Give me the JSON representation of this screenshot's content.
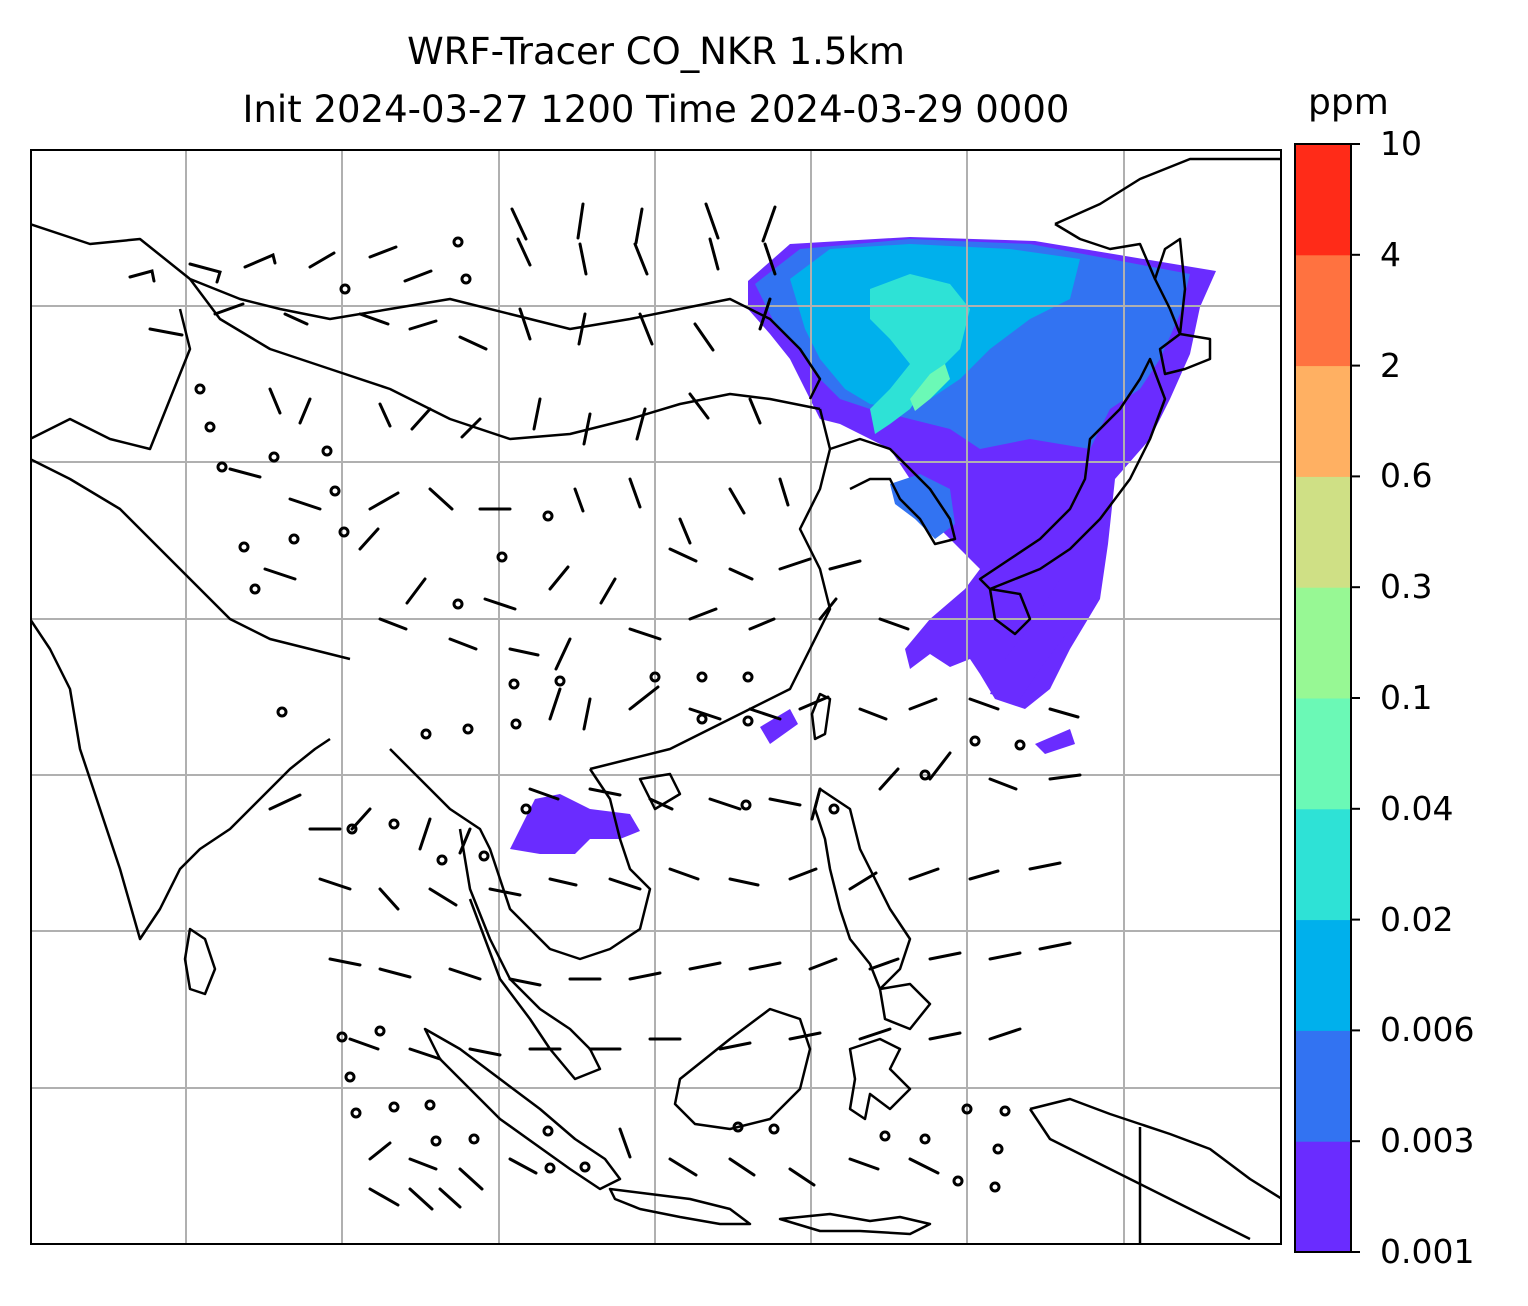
{
  "title_line1": "WRF-Tracer CO_NKR 1.5km",
  "title_line2": "Init 2024-03-27 1200 Time 2024-03-29 0000",
  "colorbar": {
    "unit": "ppm",
    "levels": [
      "0.001",
      "0.003",
      "0.006",
      "0.02",
      "0.04",
      "0.1",
      "0.3",
      "0.6",
      "2",
      "4",
      "10"
    ],
    "colors": [
      "#6a2cff",
      "#3273f2",
      "#00b0ec",
      "#2ee2d6",
      "#6bf9b6",
      "#97f894",
      "#cfe085",
      "#ffb062",
      "#ff7240",
      "#ff2b18"
    ]
  },
  "map": {
    "gridlines": true,
    "coastline_color": "#000000",
    "wind_barbs": true
  }
}
